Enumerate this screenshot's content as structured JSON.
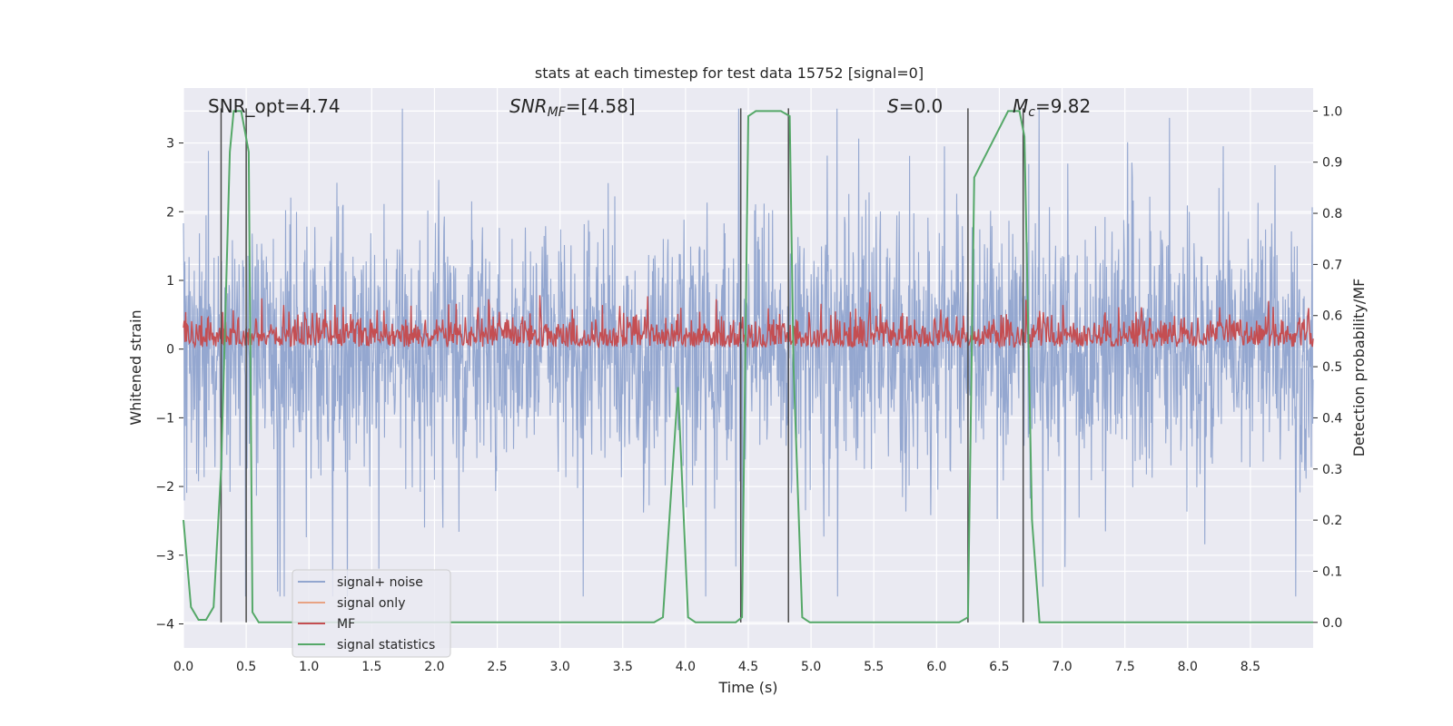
{
  "chart_data": {
    "type": "line",
    "title": "stats at each timestep for test data 15752 [signal=0]",
    "xlabel": "Time (s)",
    "ylabel": "Whitened strain",
    "ylabel_right": "Detection probability/MF",
    "xlim": [
      0,
      9.0
    ],
    "ylim": [
      -4.35,
      3.8
    ],
    "ylim_right": [
      -0.05,
      1.045
    ],
    "x_ticks": [
      "0.0",
      "0.5",
      "1.0",
      "1.5",
      "2.0",
      "2.5",
      "3.0",
      "3.5",
      "4.0",
      "4.5",
      "5.0",
      "5.5",
      "6.0",
      "6.5",
      "7.0",
      "7.5",
      "8.0",
      "8.5"
    ],
    "y_ticks": [
      "3",
      "2",
      "1",
      "0",
      "−1",
      "−2",
      "−3",
      "−4"
    ],
    "y_ticks_right": [
      "1.0",
      "0.9",
      "0.8",
      "0.7",
      "0.6",
      "0.5",
      "0.4",
      "0.3",
      "0.2",
      "0.1",
      "0.0"
    ],
    "annotations": {
      "snr_opt": "SNR_opt=4.74",
      "snr_mf_main": "SNR",
      "snr_mf_sub": "MF",
      "snr_mf_val": "=[4.58]",
      "s_main": "S",
      "s_val": "=0.0",
      "mc_main": "M",
      "mc_sub": "c",
      "mc_val": "=9.82"
    },
    "legend": {
      "position": "lower-left",
      "entries": [
        {
          "label": "signal+ noise",
          "color": "#92a6cf"
        },
        {
          "label": "signal only",
          "color": "#e8a384"
        },
        {
          "label": "MF",
          "color": "#c44e52"
        },
        {
          "label": "signal statistics",
          "color": "#55a868"
        }
      ]
    },
    "series": [
      {
        "name": "signal+ noise",
        "color": "#8fa3cd",
        "description": "whitened strain noise, roughly ±2 typical with spikes to ±3.5"
      },
      {
        "name": "signal only",
        "color": "#e8a384",
        "values": []
      },
      {
        "name": "MF",
        "color": "#c44e52",
        "description": "matched-filter output, mostly 0 to 0.7"
      },
      {
        "name": "signal statistics",
        "color": "#55a868",
        "axis": "right",
        "x": [
          0.0,
          0.06,
          0.12,
          0.18,
          0.24,
          0.3,
          0.37,
          0.4,
          0.46,
          0.52,
          0.55,
          0.6,
          0.65,
          0.7,
          3.75,
          3.82,
          3.94,
          4.02,
          4.08,
          4.4,
          4.45,
          4.5,
          4.56,
          4.76,
          4.83,
          4.86,
          4.93,
          4.99,
          6.18,
          6.25,
          6.3,
          6.57,
          6.66,
          6.7,
          6.76,
          6.82,
          9.0
        ],
        "values": [
          0.2,
          0.03,
          0.005,
          0.005,
          0.03,
          0.3,
          0.92,
          1.0,
          1.0,
          0.92,
          0.02,
          0.0,
          0.0,
          0.0,
          0.0,
          0.01,
          0.46,
          0.01,
          0.0,
          0.0,
          0.01,
          0.99,
          1.0,
          1.0,
          0.99,
          0.5,
          0.01,
          0.0,
          0.0,
          0.01,
          0.87,
          1.0,
          1.0,
          0.95,
          0.2,
          0.0,
          0.0
        ]
      }
    ],
    "vlines_x": [
      0.3,
      0.5,
      4.44,
      4.82,
      6.25,
      6.69
    ]
  }
}
